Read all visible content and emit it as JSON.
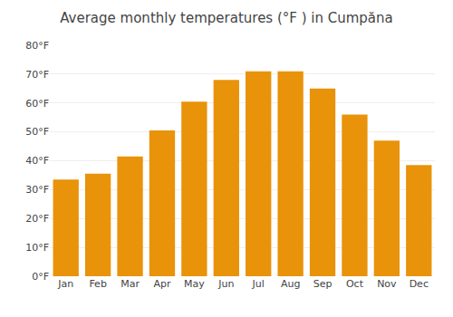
{
  "chart_data": {
    "type": "bar",
    "title": "Average monthly temperatures (°F ) in Cumpăna",
    "categories": [
      "Jan",
      "Feb",
      "Mar",
      "Apr",
      "May",
      "Jun",
      "Jul",
      "Aug",
      "Sep",
      "Oct",
      "Nov",
      "Dec"
    ],
    "values": [
      33.5,
      35.5,
      41.5,
      50.5,
      60.5,
      68.0,
      71.0,
      71.0,
      65.0,
      56.0,
      47.0,
      38.5
    ],
    "color": "#E8930A",
    "ylim": [
      0,
      80
    ],
    "yticks": [
      {
        "value": 0,
        "label": "0°F"
      },
      {
        "value": 10,
        "label": "10°F"
      },
      {
        "value": 20,
        "label": "20°F"
      },
      {
        "value": 30,
        "label": "30°F"
      },
      {
        "value": 40,
        "label": "40°F"
      },
      {
        "value": 50,
        "label": "50°F"
      },
      {
        "value": 60,
        "label": "60°F"
      },
      {
        "value": 70,
        "label": "70°F"
      },
      {
        "value": 80,
        "label": "80°F"
      }
    ],
    "grid": true
  }
}
